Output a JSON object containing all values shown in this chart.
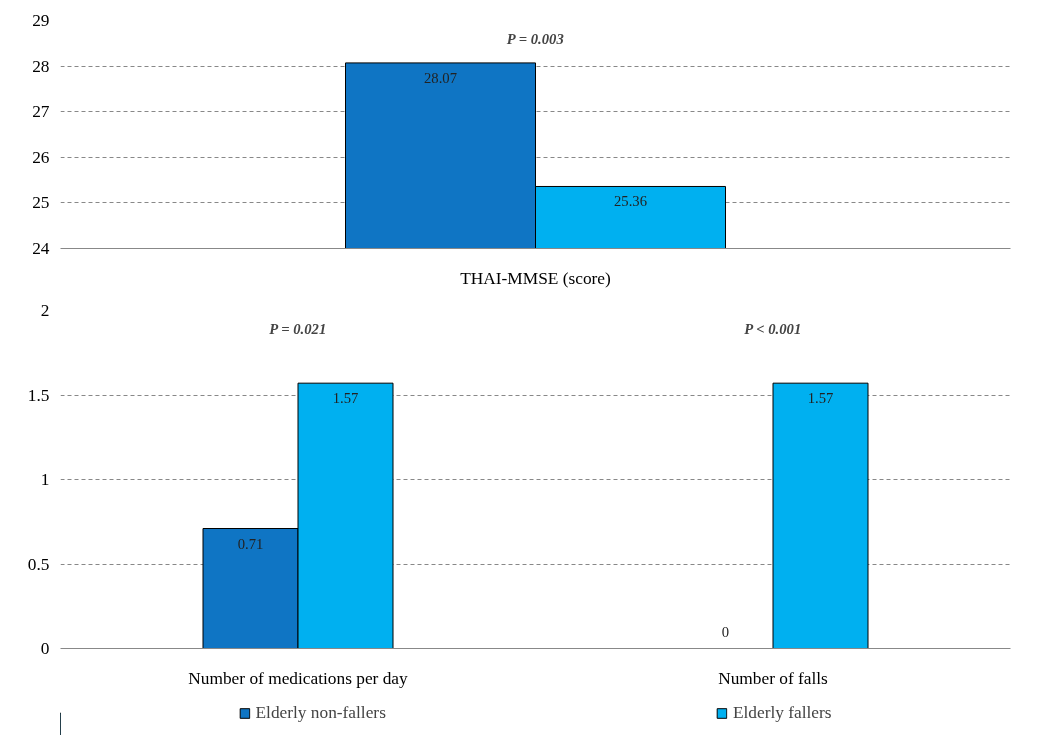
{
  "chart_data": [
    {
      "type": "bar",
      "categories": [
        "THAI-MMSE (score)"
      ],
      "series": [
        {
          "color": "#0f75c4",
          "values": [
            28.07
          ]
        },
        {
          "color": "#00b0f0",
          "values": [
            25.36
          ]
        }
      ],
      "ylim": [
        24,
        29
      ],
      "yticks": [
        24,
        25,
        26,
        27,
        28,
        29
      ],
      "grid": "y",
      "data_labels": true,
      "legend": false,
      "annotations": [
        "P = 0.003"
      ]
    },
    {
      "type": "bar",
      "categories": [
        "Number of medications per day",
        "Number of falls"
      ],
      "series": [
        {
          "name": "Elderly non-fallers",
          "color": "#0f75c4",
          "values": [
            0.71,
            0
          ]
        },
        {
          "name": "Elderly fallers",
          "color": "#00b0f0",
          "values": [
            1.57,
            1.57
          ]
        }
      ],
      "ylim": [
        0,
        2
      ],
      "yticks": [
        0,
        0.5,
        1,
        1.5,
        2
      ],
      "grid": "y",
      "data_labels": true,
      "legend": "bottom",
      "annotations": [
        "P = 0.021",
        "P < 0.001"
      ]
    }
  ]
}
